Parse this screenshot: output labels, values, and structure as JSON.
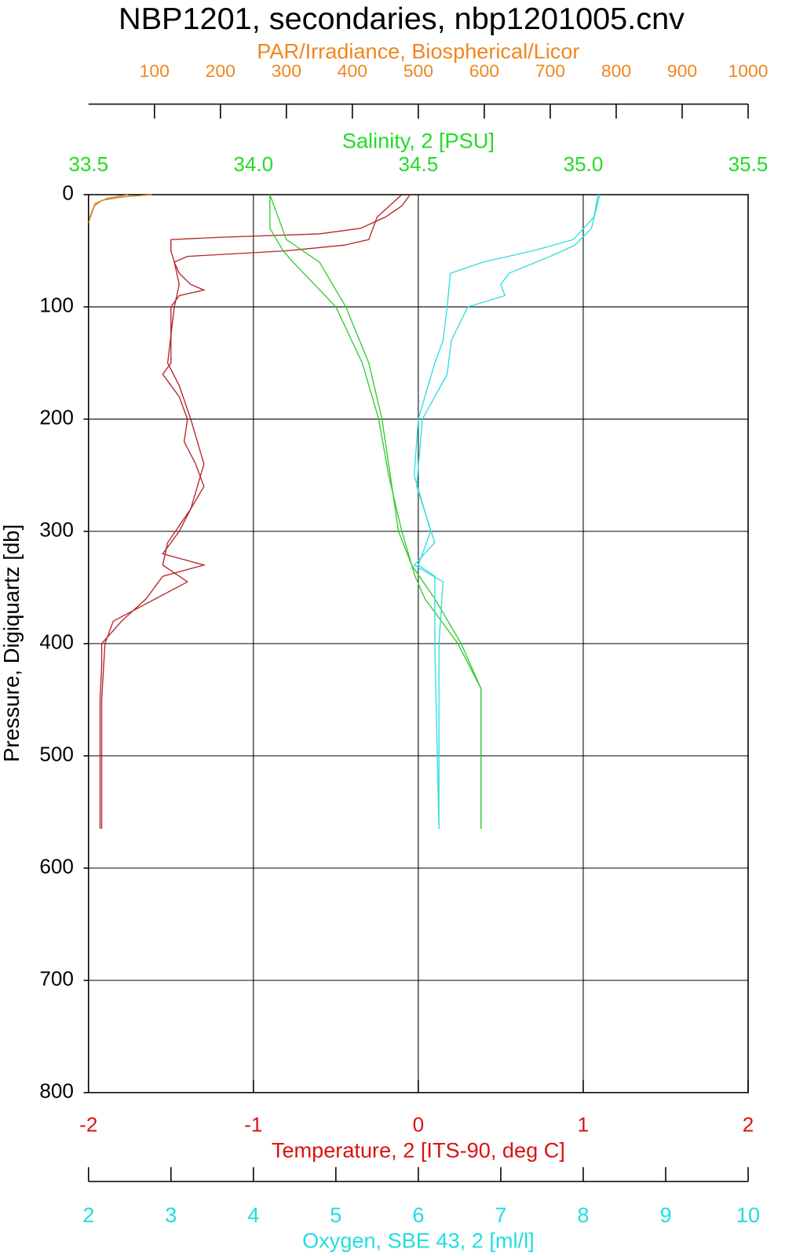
{
  "chart_data": {
    "type": "line",
    "title": "NBP1201, secondaries, nbp1201005.cnv",
    "ylabel": "Pressure, Digiquartz [db]",
    "ylim": [
      0,
      800
    ],
    "y_reversed": true,
    "yticks": [
      0,
      100,
      200,
      300,
      400,
      500,
      600,
      700,
      800
    ],
    "grid": true,
    "x_axes": [
      {
        "label": "PAR/Irradiance, Biospherical/Licor",
        "color": "#f0861c",
        "position": "top",
        "xlim": [
          0,
          1000
        ],
        "xticks": [
          100,
          200,
          300,
          400,
          500,
          600,
          700,
          800,
          900,
          1000
        ]
      },
      {
        "label": "Salinity, 2 [PSU]",
        "color": "#22dd22",
        "position": "top",
        "xlim": [
          33.5,
          35.5
        ],
        "xticks": [
          33.5,
          {
            "value": 34,
            "label": "34.0"
          },
          34.5,
          {
            "value": 35,
            "label": "35.0"
          },
          35.5
        ]
      },
      {
        "label": "Temperature, 2 [ITS-90, deg C]",
        "color": "#dd1111",
        "position": "bottom",
        "xlim": [
          -2,
          2
        ],
        "xticks": [
          -2,
          -1,
          0,
          1,
          2
        ]
      },
      {
        "label": "Oxygen, SBE 43, 2 [ml/l]",
        "color": "#22dddd",
        "position": "bottom",
        "xlim": [
          2,
          10
        ],
        "xticks": [
          2,
          3,
          4,
          5,
          6,
          7,
          8,
          9,
          10
        ]
      }
    ],
    "series": [
      {
        "axis": 2,
        "color": "#b5252a",
        "pressure": [
          0,
          10,
          20,
          30,
          35,
          38,
          40,
          50,
          60,
          70,
          80,
          85,
          90,
          100,
          130,
          150,
          160,
          180,
          200,
          220,
          240,
          260,
          280,
          300,
          320,
          330,
          340,
          360,
          380,
          400,
          420,
          450,
          500,
          565
        ],
        "values": [
          -0.05,
          -0.1,
          -0.2,
          -0.35,
          -0.6,
          -1.2,
          -1.5,
          -1.5,
          -1.48,
          -1.45,
          -1.38,
          -1.3,
          -1.45,
          -1.5,
          -1.5,
          -1.5,
          -1.55,
          -1.45,
          -1.4,
          -1.42,
          -1.35,
          -1.3,
          -1.38,
          -1.45,
          -1.55,
          -1.3,
          -1.55,
          -1.65,
          -1.8,
          -1.92,
          -1.92,
          -1.93,
          -1.93,
          -1.93
        ]
      },
      {
        "axis": 2,
        "color": "#b5252a",
        "pressure": [
          0,
          20,
          40,
          45,
          50,
          55,
          60,
          80,
          100,
          150,
          170,
          200,
          240,
          280,
          310,
          330,
          345,
          380,
          400,
          450,
          565
        ],
        "values": [
          -0.1,
          -0.25,
          -0.3,
          -0.45,
          -0.8,
          -1.4,
          -1.48,
          -1.45,
          -1.48,
          -1.52,
          -1.45,
          -1.38,
          -1.3,
          -1.38,
          -1.52,
          -1.55,
          -1.4,
          -1.85,
          -1.9,
          -1.92,
          -1.92
        ]
      },
      {
        "axis": 1,
        "color": "#33cc33",
        "pressure": [
          0,
          30,
          50,
          60,
          100,
          150,
          200,
          250,
          300,
          340,
          360,
          400,
          440,
          565
        ],
        "values": [
          34.05,
          34.05,
          34.09,
          34.12,
          34.25,
          34.33,
          34.38,
          34.41,
          34.45,
          34.49,
          34.52,
          34.62,
          34.69,
          34.69
        ]
      },
      {
        "axis": 1,
        "color": "#33cc33",
        "pressure": [
          0,
          40,
          60,
          100,
          150,
          200,
          300,
          330,
          360,
          400,
          440,
          565
        ],
        "values": [
          34.05,
          34.1,
          34.2,
          34.28,
          34.35,
          34.39,
          34.44,
          34.48,
          34.55,
          34.63,
          34.69,
          34.69
        ]
      },
      {
        "axis": 3,
        "color": "#33dddd",
        "pressure": [
          0,
          20,
          40,
          50,
          60,
          70,
          100,
          130,
          150,
          200,
          250,
          300,
          330,
          340,
          400,
          565
        ],
        "values": [
          8.18,
          8.13,
          7.88,
          7.39,
          6.79,
          6.39,
          6.35,
          6.3,
          6.2,
          6.0,
          5.95,
          6.15,
          6.0,
          6.2,
          6.2,
          6.25
        ]
      },
      {
        "axis": 3,
        "color": "#33dddd",
        "pressure": [
          0,
          30,
          45,
          55,
          70,
          80,
          90,
          100,
          130,
          160,
          200,
          260,
          310,
          330,
          345,
          400,
          565
        ],
        "values": [
          8.2,
          8.1,
          7.9,
          7.6,
          7.1,
          7.0,
          7.05,
          6.6,
          6.4,
          6.35,
          6.05,
          5.98,
          6.2,
          5.95,
          6.3,
          6.25,
          6.25
        ]
      },
      {
        "axis": 0,
        "color": "#d08020",
        "pressure": [
          0,
          2,
          5,
          10,
          20,
          25
        ],
        "values": [
          96,
          52,
          21,
          9,
          3,
          0
        ]
      },
      {
        "axis": 0,
        "color": "#d08020",
        "pressure": [
          0,
          3,
          8,
          20
        ],
        "values": [
          60,
          30,
          10,
          2
        ]
      }
    ]
  }
}
